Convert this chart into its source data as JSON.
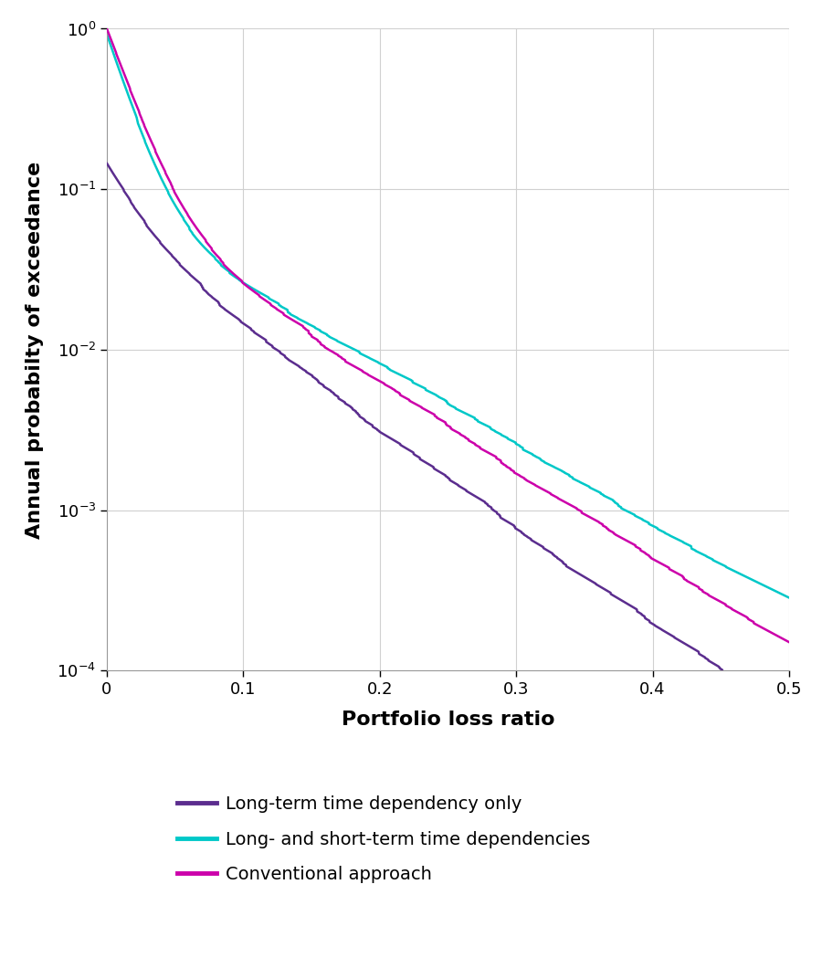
{
  "xlabel": "Portfolio loss ratio",
  "ylabel": "Annual probabilty of exceedance",
  "xlim": [
    0,
    0.5
  ],
  "ylim": [
    0.0001,
    1.0
  ],
  "xticks": [
    0,
    0.1,
    0.2,
    0.3,
    0.4,
    0.5
  ],
  "background_color": "#ffffff",
  "grid_color": "#d0d0d0",
  "legend": [
    {
      "label": "Long-term time dependency only",
      "color": "#5b2d8e"
    },
    {
      "label": "Long- and short-term time dependencies",
      "color": "#00c8c8"
    },
    {
      "label": "Conventional approach",
      "color": "#cc00aa"
    }
  ],
  "line_width": 1.8,
  "xlabel_fontsize": 16,
  "ylabel_fontsize": 16,
  "tick_fontsize": 13,
  "legend_fontsize": 14,
  "figsize": [
    9.0,
    10.49
  ],
  "dpi": 100
}
